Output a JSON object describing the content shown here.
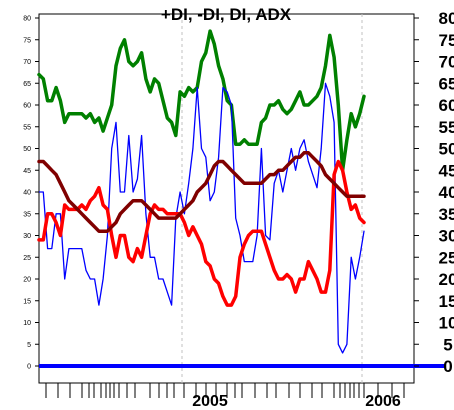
{
  "chart_data": {
    "type": "line",
    "title": "+DI, -DI, DI, ADX",
    "ylim": [
      0,
      82
    ],
    "yticks_left": [
      0,
      5,
      10,
      15,
      20,
      25,
      30,
      35,
      40,
      45,
      50,
      55,
      60,
      65,
      70,
      75,
      80
    ],
    "yticks_right": [
      0,
      5,
      10,
      15,
      20,
      25,
      30,
      35,
      40,
      45,
      50,
      55,
      60,
      65,
      70,
      75,
      80
    ],
    "year_labels": [
      "2005",
      "2006"
    ],
    "grid": false,
    "series": [
      {
        "color": "#008000",
        "values": [
          67,
          66,
          61,
          61,
          64,
          61,
          56,
          58,
          58,
          58,
          58,
          57,
          58,
          56,
          57,
          54,
          57,
          60,
          69,
          73,
          75,
          70,
          69,
          70,
          72,
          66,
          63,
          66,
          65,
          61,
          57,
          56,
          53,
          63,
          62,
          64,
          63,
          64,
          70,
          72,
          77,
          74,
          69,
          66,
          61,
          60,
          51,
          51,
          52,
          51,
          51,
          51,
          56,
          57,
          60,
          60,
          61,
          59,
          58,
          59,
          61,
          63,
          60,
          60,
          61,
          62,
          64,
          69,
          76,
          71,
          60,
          45,
          52,
          58,
          55,
          58,
          62
        ]
      },
      {
        "color": "#0000ff",
        "values": [
          40,
          40,
          27,
          27,
          35,
          35,
          20,
          27,
          27,
          27,
          27,
          22,
          20,
          20,
          14,
          20,
          30,
          50,
          56,
          40,
          40,
          53,
          40,
          43,
          53,
          35,
          25,
          25,
          20,
          20,
          17,
          14,
          34,
          40,
          35,
          42,
          50,
          64,
          50,
          48,
          38,
          40,
          48,
          64,
          63,
          60,
          34,
          30,
          24,
          24,
          24,
          30,
          50,
          30,
          29,
          42,
          45,
          40,
          45,
          50,
          45,
          50,
          52,
          47,
          44,
          41,
          50,
          65,
          62,
          56,
          5,
          3,
          5,
          25,
          20,
          25,
          31
        ]
      },
      {
        "color": "#ff0000",
        "values": [
          29,
          29,
          35,
          35,
          33,
          30,
          37,
          36,
          36,
          36,
          37,
          36,
          38,
          39,
          41,
          37,
          36,
          30,
          25,
          30,
          30,
          25,
          24,
          27,
          25,
          30,
          35,
          37,
          36,
          36,
          35,
          35,
          35,
          35,
          33,
          30,
          32,
          30,
          28,
          24,
          23,
          20,
          19,
          16,
          14,
          14,
          16,
          25,
          28,
          30,
          31,
          31,
          31,
          28,
          25,
          22,
          20,
          20,
          21,
          20,
          17,
          20,
          20,
          24,
          22,
          20,
          17,
          17,
          22,
          44,
          47,
          45,
          40,
          36,
          37,
          34,
          33
        ]
      },
      {
        "color": "#800000",
        "values": [
          47,
          47,
          46,
          45,
          44,
          42,
          40,
          38,
          37,
          36,
          35,
          34,
          33,
          32,
          31,
          31,
          31,
          32,
          33,
          35,
          36,
          37,
          38,
          38,
          38,
          37,
          36,
          35,
          34,
          34,
          34,
          34,
          34,
          35,
          36,
          37,
          38,
          40,
          41,
          42,
          44,
          46,
          47,
          47,
          46,
          45,
          44,
          43,
          42,
          42,
          42,
          42,
          42,
          43,
          44,
          44,
          45,
          45,
          46,
          47,
          48,
          48,
          49,
          49,
          48,
          47,
          46,
          44,
          43,
          42,
          41,
          40,
          39,
          39,
          39,
          39,
          39
        ]
      }
    ]
  }
}
